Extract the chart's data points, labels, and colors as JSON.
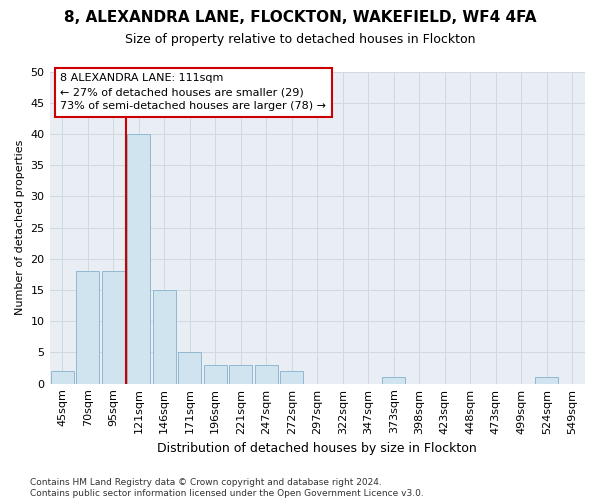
{
  "title1": "8, ALEXANDRA LANE, FLOCKTON, WAKEFIELD, WF4 4FA",
  "title2": "Size of property relative to detached houses in Flockton",
  "xlabel": "Distribution of detached houses by size in Flockton",
  "ylabel": "Number of detached properties",
  "categories": [
    "45sqm",
    "70sqm",
    "95sqm",
    "121sqm",
    "146sqm",
    "171sqm",
    "196sqm",
    "221sqm",
    "247sqm",
    "272sqm",
    "297sqm",
    "322sqm",
    "347sqm",
    "373sqm",
    "398sqm",
    "423sqm",
    "448sqm",
    "473sqm",
    "499sqm",
    "524sqm",
    "549sqm"
  ],
  "values": [
    2,
    18,
    18,
    40,
    15,
    5,
    3,
    3,
    3,
    2,
    0,
    0,
    0,
    1,
    0,
    0,
    0,
    0,
    0,
    1,
    0
  ],
  "bar_color": "#d0e4f0",
  "bar_edge_color": "#90b8d0",
  "grid_color": "#d0d8e0",
  "vline_color": "#cc0000",
  "vline_x_index": 3,
  "annotation_line1": "8 ALEXANDRA LANE: 111sqm",
  "annotation_line2": "← 27% of detached houses are smaller (29)",
  "annotation_line3": "73% of semi-detached houses are larger (78) →",
  "annotation_box_color": "white",
  "annotation_box_edge_color": "#cc0000",
  "bg_color": "#ffffff",
  "plot_bg_color": "#e8eef4",
  "ylim": [
    0,
    50
  ],
  "yticks": [
    0,
    5,
    10,
    15,
    20,
    25,
    30,
    35,
    40,
    45,
    50
  ],
  "footnote": "Contains HM Land Registry data © Crown copyright and database right 2024.\nContains public sector information licensed under the Open Government Licence v3.0.",
  "title1_fontsize": 11,
  "title2_fontsize": 9,
  "xlabel_fontsize": 9,
  "ylabel_fontsize": 8,
  "tick_fontsize": 8,
  "annot_fontsize": 8,
  "footnote_fontsize": 6.5
}
